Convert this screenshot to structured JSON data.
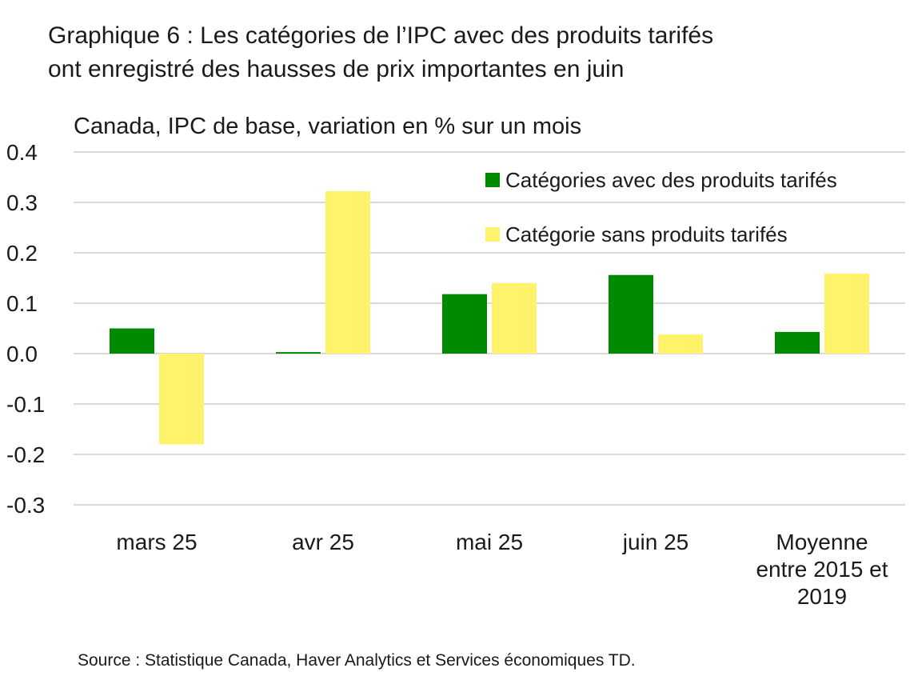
{
  "title_lines": [
    "Graphique 6 : Les catégories de l’IPC avec des produits tarifés",
    "ont enregistré des hausses de prix importantes en juin"
  ],
  "source": "Source : Statistique Canada, Haver Analytics et Services économiques TD.",
  "colors": {
    "tariffed": "#008a00",
    "non_tariffed": "#fff36b",
    "gridline": "#d9d9d9",
    "text": "#1a1a1a"
  },
  "chart_data": {
    "type": "bar",
    "title": "Graphique 6 : Les catégories de l’IPC avec des produits tarifés ont enregistré des hausses de prix importantes en juin",
    "subtitle": "Canada, IPC de base, variation en % sur un mois",
    "xlabel": "",
    "ylabel": "",
    "ylim": [
      -0.3,
      0.4
    ],
    "yticks": [
      0.4,
      0.3,
      0.2,
      0.1,
      0.0,
      -0.1,
      -0.2,
      -0.3
    ],
    "ytick_labels": [
      "0.4",
      "0.3",
      "0.2",
      "0.1",
      "0.0",
      "-0.1",
      "-0.2",
      "-0.3"
    ],
    "categories": [
      [
        "mars 25"
      ],
      [
        "avr 25"
      ],
      [
        "mai 25"
      ],
      [
        "juin 25"
      ],
      [
        "Moyenne",
        "entre 2015 et",
        "2019"
      ]
    ],
    "series": [
      {
        "name": "Catégories avec des produits tarifés",
        "color": "#008a00",
        "values": [
          0.05,
          0.003,
          0.118,
          0.156,
          0.043
        ]
      },
      {
        "name": "Catégorie sans produits tarifés",
        "color": "#fff36b",
        "values": [
          -0.18,
          0.322,
          0.14,
          0.038,
          0.159
        ]
      }
    ],
    "legend": {
      "position": "top-right",
      "entries": [
        "Catégories avec des produits tarifés",
        "Catégorie sans produits tarifés"
      ]
    },
    "grid": true
  }
}
